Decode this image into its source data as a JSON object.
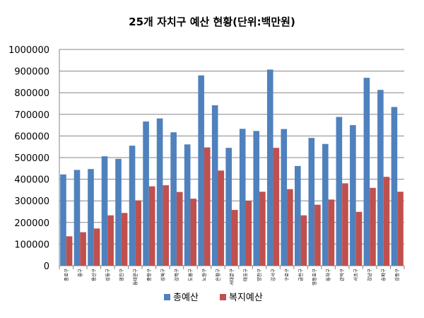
{
  "chart_data": {
    "type": "bar",
    "title": "25개 자치구 예산 현황(단위:백만원)",
    "xlabel": "",
    "ylabel": "",
    "ylim": [
      0,
      1000000
    ],
    "yticks": [
      0,
      100000,
      200000,
      300000,
      400000,
      500000,
      600000,
      700000,
      800000,
      900000,
      1000000
    ],
    "grid": true,
    "legend": "bottom",
    "categories": [
      "종로구",
      "중구",
      "용산구",
      "성동구",
      "광진구",
      "동대문구",
      "중랑구",
      "성북구",
      "강북구",
      "도봉구",
      "노원구",
      "은평구",
      "서대문구",
      "마포구",
      "양천구",
      "강서구",
      "구로구",
      "금천구",
      "영등포구",
      "동작구",
      "관악구",
      "서초구",
      "강남구",
      "송파구",
      "강동구"
    ],
    "series": [
      {
        "name": "총예산",
        "color": "#4f81bd",
        "values": [
          422000,
          443000,
          447000,
          506000,
          494000,
          555000,
          667000,
          681000,
          617000,
          561000,
          880000,
          742000,
          545000,
          633000,
          623000,
          907000,
          632000,
          461000,
          591000,
          563000,
          688000,
          650000,
          869000,
          813000,
          734000
        ]
      },
      {
        "name": "복지예산",
        "color": "#c0504d",
        "values": [
          136000,
          155000,
          172000,
          233000,
          244000,
          302000,
          367000,
          372000,
          341000,
          310000,
          547000,
          440000,
          258000,
          300000,
          342000,
          545000,
          354000,
          233000,
          282000,
          306000,
          381000,
          249000,
          360000,
          411000,
          342000
        ]
      }
    ]
  }
}
